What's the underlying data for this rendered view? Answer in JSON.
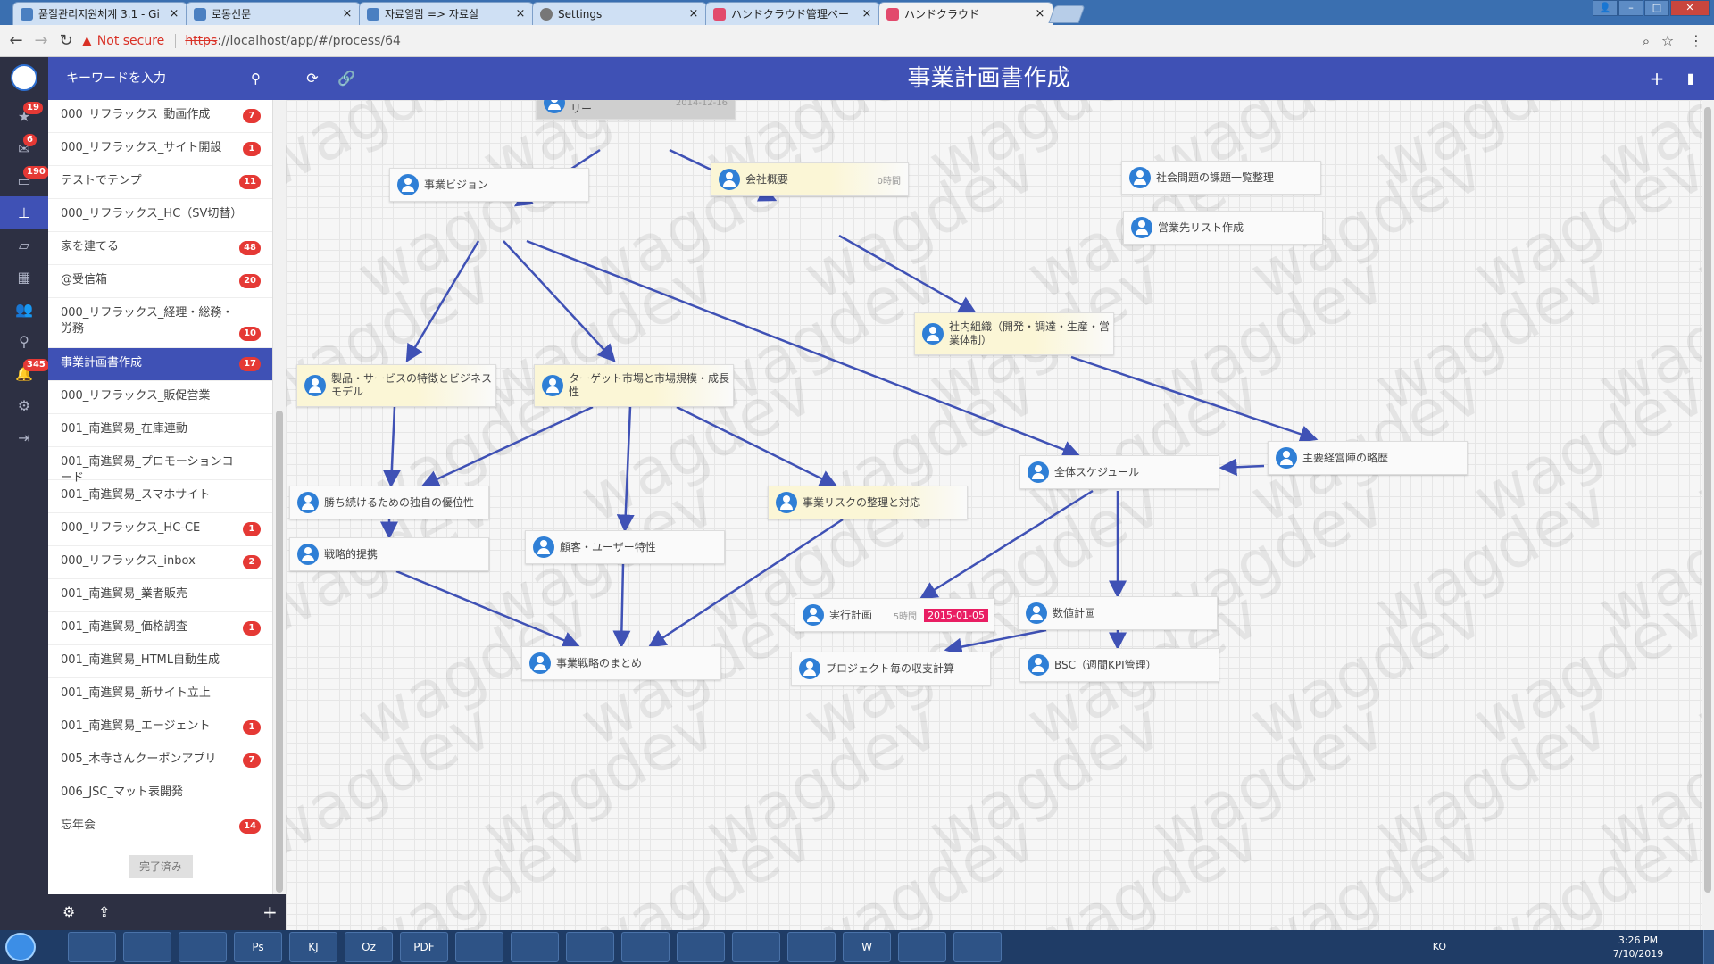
{
  "browser": {
    "tabs": [
      {
        "label": "품질관리지원체계 3.1 - Gi"
      },
      {
        "label": "로동신문"
      },
      {
        "label": "자료열람 => 자료실"
      },
      {
        "label": "Settings"
      },
      {
        "label": "ハンドクラウド管理ペー"
      },
      {
        "label": "ハンドクラウド"
      }
    ],
    "close_glyph": "×",
    "security_label": "Not secure",
    "url_scheme": "https",
    "url_rest": "://localhost/app/#/process/64"
  },
  "header": {
    "title": "事業計画書作成",
    "search_placeholder": "キーワードを入力"
  },
  "rail": {
    "badges": [
      "19",
      "6",
      "190",
      "345"
    ]
  },
  "sidebar": {
    "projects": [
      {
        "label": "000_リフラックス_動画作成",
        "count": "7"
      },
      {
        "label": "000_リフラックス_サイト開設",
        "count": "1"
      },
      {
        "label": "テストでテンプ",
        "count": "11"
      },
      {
        "label": "000_リフラックス_HC（SV切替）",
        "count": ""
      },
      {
        "label": "家を建てる",
        "count": "48"
      },
      {
        "label": "@受信箱",
        "count": "20"
      },
      {
        "label": "000_リフラックス_経理・総務・労務",
        "count": "10"
      },
      {
        "label": "事業計画書作成",
        "count": "17"
      },
      {
        "label": "000_リフラックス_販促営業",
        "count": ""
      },
      {
        "label": "001_南進貿易_在庫連動",
        "count": ""
      },
      {
        "label": "001_南進貿易_プロモーションコード",
        "count": ""
      },
      {
        "label": "001_南進貿易_スマホサイト",
        "count": ""
      },
      {
        "label": "000_リフラックス_HC-CE",
        "count": "1"
      },
      {
        "label": "000_リフラックス_inbox",
        "count": "2"
      },
      {
        "label": "001_南進貿易_業者販売",
        "count": ""
      },
      {
        "label": "001_南進貿易_価格調査",
        "count": "1"
      },
      {
        "label": "001_南進貿易_HTML自動生成",
        "count": ""
      },
      {
        "label": "001_南進貿易_新サイト立上",
        "count": ""
      },
      {
        "label": "001_南進貿易_エージェント",
        "count": "1"
      },
      {
        "label": "005_木寺さんクーポンアプリ",
        "count": "7"
      },
      {
        "label": "006_JSC_マット表開発",
        "count": ""
      },
      {
        "label": "忘年会",
        "count": "14"
      }
    ],
    "done_label": "完了済み"
  },
  "canvas": {
    "watermark": "wagdev",
    "nodes": {
      "exec_summary": {
        "label": "エグゼクティブサマリー",
        "date": "2014-12-16"
      },
      "vision": {
        "label": "事業ビジョン"
      },
      "company": {
        "label": "会社概要",
        "hours": "0時間"
      },
      "social_issues": {
        "label": "社会問題の課題一覧整理"
      },
      "sales_list": {
        "label": "営業先リスト作成"
      },
      "org": {
        "label": "社内組織（開発・調達・生産・営業体制）"
      },
      "product": {
        "label": "製品・サービスの特徴とビジネスモデル"
      },
      "target_market": {
        "label": "ターゲット市場と市場規模・成長性"
      },
      "schedule": {
        "label": "全体スケジュール"
      },
      "management": {
        "label": "主要経営陣の略歴"
      },
      "advantage": {
        "label": "勝ち続けるための独自の優位性"
      },
      "risk": {
        "label": "事業リスクの整理と対応"
      },
      "alliance": {
        "label": "戦略的提携"
      },
      "customer": {
        "label": "顧客・ユーザー特性"
      },
      "exec_plan": {
        "label": "実行計画",
        "hours": "5時間",
        "date": "2015-01-05"
      },
      "numeric_plan": {
        "label": "数値計画"
      },
      "strategy_summary": {
        "label": "事業戦略のまとめ"
      },
      "pl_by_project": {
        "label": "プロジェクト毎の収支計算"
      },
      "bsc": {
        "label": "BSC（週間KPI管理）"
      }
    }
  },
  "taskbar": {
    "apps": [
      "",
      "",
      "",
      "Ps",
      "KJ",
      "Oz",
      "PDF",
      "",
      "",
      "",
      "",
      "",
      "",
      "",
      "W",
      "",
      ""
    ],
    "lang": "KO",
    "time": "3:26 PM",
    "date": "7/10/2019"
  },
  "colors": {
    "primary": "#3f51b5",
    "rail": "#2d3043",
    "badge": "#e53935",
    "date_badge": "#e91e63",
    "edge": "#3f51b5"
  }
}
